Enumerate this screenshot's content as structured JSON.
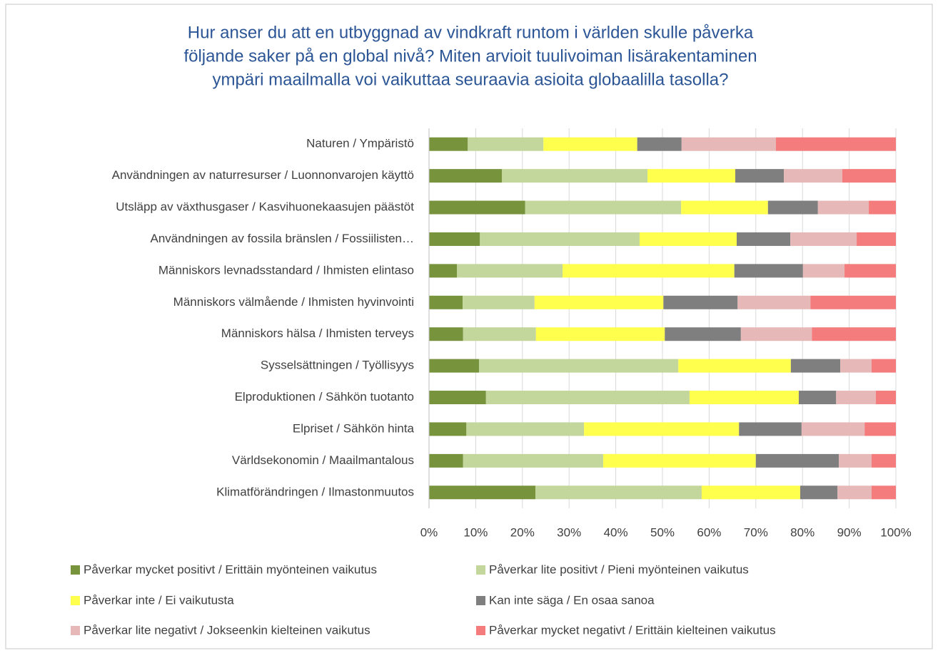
{
  "chart_data": {
    "type": "stacked_bar_horizontal",
    "title_lines": [
      "Hur anser du att en utbyggnad av vindkraft runtom i världen skulle påverka",
      "följande saker på en global nivå? Miten arvioit tuulivoiman lisärakentaminen",
      "ympäri maailmalla voi vaikuttaa seuraavia asioita globaalilla tasolla?"
    ],
    "categories": [
      "Naturen / Ympäristö",
      "Användningen av naturresurser / Luonnonvarojen käyttö",
      "Utsläpp av växthusgaser / Kasvihuonekaasujen päästöt",
      "Användningen av fossila bränslen / Fossiilisten…",
      "Människors levnadsstandard / Ihmisten elintaso",
      "Människors välmående / Ihmisten hyvinvointi",
      "Människors hälsa / Ihmisten terveys",
      "Sysselsättningen / Työllisyys",
      "Elproduktionen / Sähkön tuotanto",
      "Elpriset / Sähkön hinta",
      "Världsekonomin / Maailmantalous",
      "Klimatförändringen / Ilmastonmuutos"
    ],
    "series": [
      {
        "name": "Påverkar mycket positivt / Erittäin myönteinen vaikutus",
        "color": "#77933c",
        "values": [
          8.3,
          15.6,
          20.6,
          10.9,
          6.0,
          7.2,
          7.3,
          10.7,
          12.2,
          8.0,
          7.3,
          22.8
        ]
      },
      {
        "name": "Påverkar lite positivt / Pieni myönteinen vaikutus",
        "color": "#c3d69b",
        "values": [
          16.2,
          31.2,
          33.4,
          34.2,
          22.6,
          15.4,
          15.6,
          42.7,
          43.6,
          25.2,
          30.0,
          35.6
        ]
      },
      {
        "name": "Påverkar inte / Ei vaikutusta",
        "color": "#ffff4d",
        "values": [
          20.1,
          18.8,
          18.6,
          20.8,
          36.8,
          27.6,
          27.6,
          24.1,
          23.4,
          33.2,
          32.7,
          21.1
        ]
      },
      {
        "name": "Kan inte säga / En osaa sanoa",
        "color": "#7f7f7f",
        "values": [
          9.5,
          10.4,
          10.7,
          11.5,
          14.7,
          15.9,
          16.3,
          10.6,
          8.0,
          13.4,
          17.8,
          8.0
        ]
      },
      {
        "name": "Påverkar lite negativt / Jokseenkin kielteinen vaikutus",
        "color": "#e6b9b8",
        "values": [
          20.2,
          12.5,
          10.9,
          14.2,
          8.9,
          15.6,
          15.2,
          6.7,
          8.5,
          13.5,
          7.0,
          7.3
        ]
      },
      {
        "name": "Påverkar mycket negativt / Erittäin kielteinen vaikutus",
        "color": "#f47c7c",
        "values": [
          25.7,
          11.5,
          5.8,
          8.4,
          11.0,
          18.3,
          18.0,
          5.2,
          4.3,
          6.7,
          5.2,
          5.2
        ]
      }
    ],
    "xlim": [
      0,
      100
    ],
    "xticks": [
      {
        "value": 0,
        "label": "0%"
      },
      {
        "value": 10,
        "label": "10%"
      },
      {
        "value": 20,
        "label": "20%"
      },
      {
        "value": 30,
        "label": "30%"
      },
      {
        "value": 40,
        "label": "40%"
      },
      {
        "value": 50,
        "label": "50%"
      },
      {
        "value": 60,
        "label": "60%"
      },
      {
        "value": 70,
        "label": "70%"
      },
      {
        "value": 80,
        "label": "80%"
      },
      {
        "value": 90,
        "label": "90%"
      },
      {
        "value": 100,
        "label": "100%"
      }
    ],
    "grid": true,
    "legend": "bottom"
  }
}
